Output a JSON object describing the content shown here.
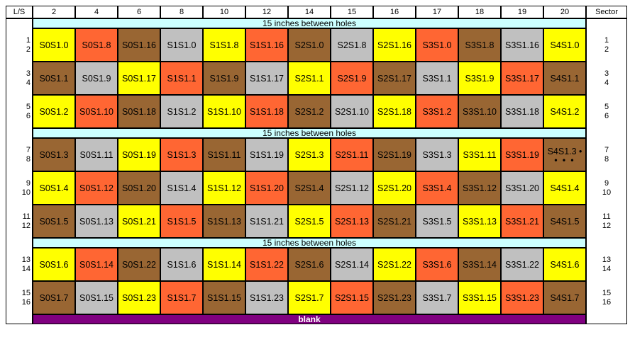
{
  "header": {
    "left_label": "L/S",
    "right_label": "Sector",
    "columns": [
      "2",
      "4",
      "6",
      "8",
      "10",
      "12",
      "14",
      "15",
      "16",
      "17",
      "18",
      "19",
      "20"
    ]
  },
  "band_label": "15 inches between holes",
  "blank_label": "blank",
  "colors": {
    "Y": "#ffff00",
    "O": "#ff6633",
    "B": "#996633",
    "G": "#c0c0c0",
    "band": "#ccffff",
    "blank": "#800080"
  },
  "left_labels": [
    [
      "1",
      "2"
    ],
    [
      "3",
      "4"
    ],
    [
      "5",
      "6"
    ],
    [
      "7",
      "8"
    ],
    [
      "9",
      "10"
    ],
    [
      "11",
      "12"
    ],
    [
      "13",
      "14"
    ],
    [
      "15",
      "16"
    ]
  ],
  "right_labels": [
    [
      "1",
      "2"
    ],
    [
      "3",
      "4"
    ],
    [
      "5",
      "6"
    ],
    [
      "7",
      "8"
    ],
    [
      "9",
      "10"
    ],
    [
      "11",
      "12"
    ],
    [
      "13",
      "14"
    ],
    [
      "15",
      "16"
    ]
  ],
  "rows": [
    {
      "cells": [
        [
          "S0S1.0",
          "Y"
        ],
        [
          "S0S1.8",
          "O"
        ],
        [
          "S0S1.16",
          "B"
        ],
        [
          "S1S1.0",
          "G"
        ],
        [
          "S1S1.8",
          "Y"
        ],
        [
          "S1S1.16",
          "O"
        ],
        [
          "S2S1.0",
          "B"
        ],
        [
          "S2S1.8",
          "G"
        ],
        [
          "S2S1.16",
          "Y"
        ],
        [
          "S3S1.0",
          "O"
        ],
        [
          "S3S1.8",
          "B"
        ],
        [
          "S3S1.16",
          "G"
        ],
        [
          "S4S1.0",
          "Y"
        ]
      ]
    },
    {
      "cells": [
        [
          "S0S1.1",
          "B"
        ],
        [
          "S0S1.9",
          "G"
        ],
        [
          "S0S1.17",
          "Y"
        ],
        [
          "S1S1.1",
          "O"
        ],
        [
          "S1S1.9",
          "B"
        ],
        [
          "S1S1.17",
          "G"
        ],
        [
          "S2S1.1",
          "Y"
        ],
        [
          "S2S1.9",
          "O"
        ],
        [
          "S2S1.17",
          "B"
        ],
        [
          "S3S1.1",
          "G"
        ],
        [
          "S3S1.9",
          "Y"
        ],
        [
          "S3S1.17",
          "O"
        ],
        [
          "S4S1.1",
          "B"
        ]
      ]
    },
    {
      "cells": [
        [
          "S0S1.2",
          "Y"
        ],
        [
          "S0S1.10",
          "O"
        ],
        [
          "S0S1.18",
          "B"
        ],
        [
          "S1S1.2",
          "G"
        ],
        [
          "S1S1.10",
          "Y"
        ],
        [
          "S1S1.18",
          "O"
        ],
        [
          "S2S1.2",
          "B"
        ],
        [
          "S2S1.10",
          "G"
        ],
        [
          "S2S1.18",
          "Y"
        ],
        [
          "S3S1.2",
          "O"
        ],
        [
          "S3S1.10",
          "B"
        ],
        [
          "S3S1.18",
          "G"
        ],
        [
          "S4S1.2",
          "Y"
        ]
      ]
    },
    {
      "cells": [
        [
          "S0S1.3",
          "B"
        ],
        [
          "S0S1.11",
          "G"
        ],
        [
          "S0S1.19",
          "Y"
        ],
        [
          "S1S1.3",
          "O"
        ],
        [
          "S1S1.11",
          "B"
        ],
        [
          "S1S1.19",
          "G"
        ],
        [
          "S2S1.3",
          "Y"
        ],
        [
          "S2S1.11",
          "O"
        ],
        [
          "S2S1.19",
          "B"
        ],
        [
          "S3S1.3",
          "G"
        ],
        [
          "S3S1.11",
          "Y"
        ],
        [
          "S3S1.19",
          "O"
        ],
        [
          "S4S1.3 •",
          "B",
          "• • •"
        ]
      ]
    },
    {
      "cells": [
        [
          "S0S1.4",
          "Y"
        ],
        [
          "S0S1.12",
          "O"
        ],
        [
          "S0S1.20",
          "B"
        ],
        [
          "S1S1.4",
          "G"
        ],
        [
          "S1S1.12",
          "Y"
        ],
        [
          "S1S1.20",
          "O"
        ],
        [
          "S2S1.4",
          "B"
        ],
        [
          "S2S1.12",
          "G"
        ],
        [
          "S2S1.20",
          "Y"
        ],
        [
          "S3S1.4",
          "O"
        ],
        [
          "S3S1.12",
          "B"
        ],
        [
          "S3S1.20",
          "G"
        ],
        [
          "S4S1.4",
          "Y"
        ]
      ]
    },
    {
      "cells": [
        [
          "S0S1.5",
          "B"
        ],
        [
          "S0S1.13",
          "G"
        ],
        [
          "S0S1.21",
          "Y"
        ],
        [
          "S1S1.5",
          "O"
        ],
        [
          "S1S1.13",
          "B"
        ],
        [
          "S1S1.21",
          "G"
        ],
        [
          "S2S1.5",
          "Y"
        ],
        [
          "S2S1.13",
          "O"
        ],
        [
          "S2S1.21",
          "B"
        ],
        [
          "S3S1.5",
          "G"
        ],
        [
          "S3S1.13",
          "Y"
        ],
        [
          "S3S1.21",
          "O"
        ],
        [
          "S4S1.5",
          "B"
        ]
      ]
    },
    {
      "cells": [
        [
          "S0S1.6",
          "Y"
        ],
        [
          "S0S1.14",
          "O"
        ],
        [
          "S0S1.22",
          "B"
        ],
        [
          "S1S1.6",
          "G"
        ],
        [
          "S1S1.14",
          "Y"
        ],
        [
          "S1S1.22",
          "O"
        ],
        [
          "S2S1.6",
          "B"
        ],
        [
          "S2S1.14",
          "G"
        ],
        [
          "S2S1.22",
          "Y"
        ],
        [
          "S3S1.6",
          "O"
        ],
        [
          "S3S1.14",
          "B"
        ],
        [
          "S3S1.22",
          "G"
        ],
        [
          "S4S1.6",
          "Y"
        ]
      ]
    },
    {
      "cells": [
        [
          "S0S1.7",
          "B"
        ],
        [
          "S0S1.15",
          "G"
        ],
        [
          "S0S1.23",
          "Y"
        ],
        [
          "S1S1.7",
          "O"
        ],
        [
          "S1S1.15",
          "B"
        ],
        [
          "S1S1.23",
          "G"
        ],
        [
          "S2S1.7",
          "Y"
        ],
        [
          "S2S1.15",
          "O"
        ],
        [
          "S2S1.23",
          "B"
        ],
        [
          "S3S1.7",
          "G"
        ],
        [
          "S3S1.15",
          "Y"
        ],
        [
          "S3S1.23",
          "O"
        ],
        [
          "S4S1.7",
          "B"
        ]
      ]
    }
  ]
}
